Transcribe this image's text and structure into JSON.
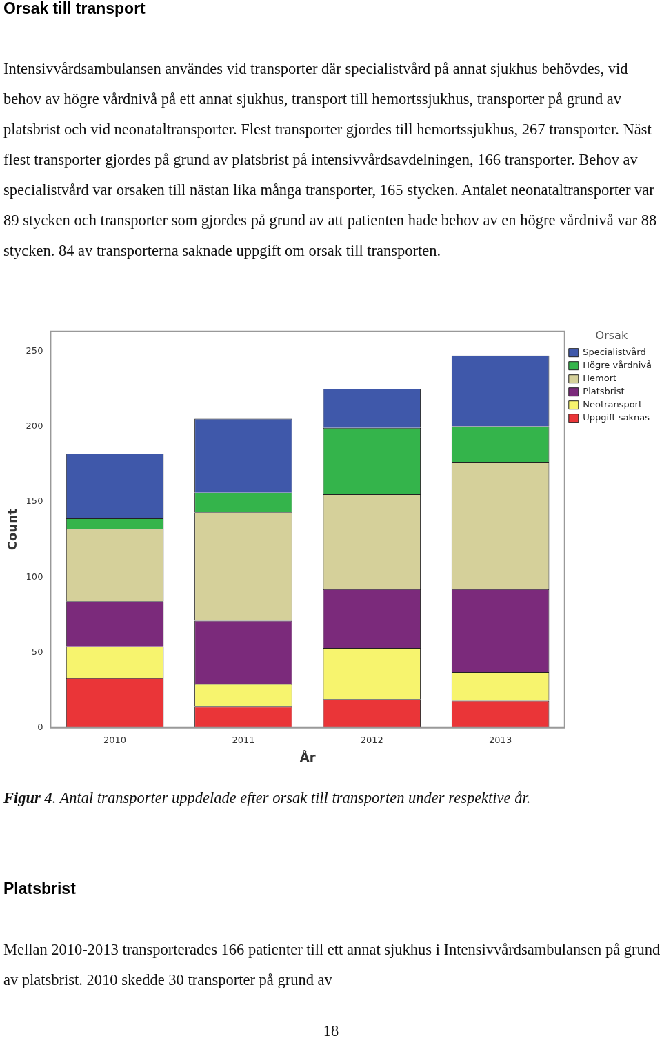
{
  "chart_data": {
    "type": "bar",
    "title": "Orsak till transport",
    "subtitle": "Intensivvårdsambulansen användes vid transporter där specialistvård på annat sjukhus behövdes, vid behov av högre vårdnivå på ett annat sjukhus, transport till hemortssjukhus, transporter på grund av platsbrist och vid neonataltransporter. Flest transporter gjordes till hemortssjukhus, 267 transporter. Näst flest transporter gjordes på grund av platsbrist på intensivvårdsavdelningen, 166 transporter. Behov av specialistvård var orsaken till nästan lika många transporter, 165 stycken. Antalet neonataltransporter var 89 stycken och transporter som gjordes på grund av att patienten hade behov av en högre vårdnivå var 88 stycken. 84 av transporterna saknade uppgift om orsak till transporten.",
    "xlabel": "År",
    "ylabel": "Count",
    "legend_title": "Orsak",
    "legend": "right",
    "stacked": true,
    "categories": [
      "2010",
      "2011",
      "2012",
      "2013"
    ],
    "ylim": [
      0,
      263
    ],
    "yticks": [
      0,
      50,
      100,
      150,
      200,
      250
    ],
    "series": [
      {
        "name": "Uppgift saknas",
        "color": "#ea3538",
        "values": [
          33,
          14,
          19,
          18
        ]
      },
      {
        "name": "Neotransport",
        "color": "#f7f46e",
        "values": [
          21,
          15,
          34,
          19
        ]
      },
      {
        "name": "Platsbrist",
        "color": "#7b2a7b",
        "values": [
          30,
          42,
          39,
          55
        ]
      },
      {
        "name": "Hemort",
        "color": "#d5d09a",
        "values": [
          48,
          72,
          63,
          84
        ]
      },
      {
        "name": "Högre vårdnivå",
        "color": "#34b44b",
        "values": [
          7,
          13,
          44,
          24
        ]
      },
      {
        "name": "Specialistvård",
        "color": "#3f58aa",
        "values": [
          43,
          49,
          26,
          47
        ]
      }
    ],
    "annotations": [
      "Figur 4. Antal transporter uppdelade efter orsak till transporten under respektive år.",
      "Platsbrist",
      "Mellan 2010-2013 transporterades 166 patienter till ett annat sjukhus i Intensivvårdsambulansen på grund av platsbrist. 2010 skedde 30 transporter på grund av",
      "18"
    ]
  }
}
